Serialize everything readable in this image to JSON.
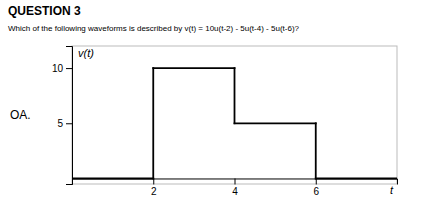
{
  "chart_data": {
    "type": "line",
    "title": "QUESTION 3",
    "subtitle": "Which of the following waveforms is described by v(t) = 10u(t-2) - 5u(t-4) - 5u(t-6)?",
    "annotation": "OA.",
    "xlabel": "t",
    "ylabel": "v(t)",
    "color": "#000000",
    "xlim": [
      0,
      8
    ],
    "ylim": [
      -0.5,
      12
    ],
    "xticks": [
      2,
      4,
      6
    ],
    "yticks": [
      5,
      10
    ],
    "series": [
      {
        "x": [
          0,
          2
        ],
        "values": [
          0,
          0
        ]
      },
      {
        "x": [
          2,
          2
        ],
        "values": [
          0,
          10
        ]
      },
      {
        "x": [
          2,
          4
        ],
        "values": [
          10,
          10
        ]
      },
      {
        "x": [
          4,
          4
        ],
        "values": [
          10,
          5
        ]
      },
      {
        "x": [
          4,
          6
        ],
        "values": [
          5,
          5
        ]
      },
      {
        "x": [
          6,
          6
        ],
        "values": [
          5,
          0
        ]
      },
      {
        "x": [
          6,
          8
        ],
        "values": [
          0,
          0
        ]
      }
    ]
  }
}
